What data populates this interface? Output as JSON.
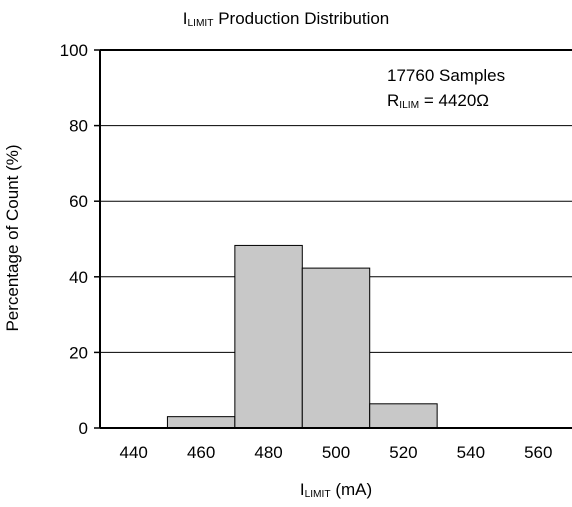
{
  "chart_data": {
    "type": "bar",
    "title": {
      "main": "I",
      "sub": "LIMIT",
      "rest": " Production Distribution"
    },
    "xlabel": {
      "main": "I",
      "sub": "LIMIT",
      "rest": " (mA)"
    },
    "ylabel": "Percentage of Count (%)",
    "bins": [
      {
        "start": 450,
        "end": 470,
        "value": 3
      },
      {
        "start": 470,
        "end": 490,
        "value": 48.3
      },
      {
        "start": 490,
        "end": 510,
        "value": 42.3
      },
      {
        "start": 510,
        "end": 530,
        "value": 6.4
      }
    ],
    "xlim": [
      430,
      570
    ],
    "ylim": [
      0,
      100
    ],
    "xticks": [
      440,
      460,
      480,
      500,
      520,
      540,
      560
    ],
    "yticks": [
      0,
      20,
      40,
      60,
      80,
      100
    ],
    "grid": "horizontal",
    "bar_color": "#c8c8c8",
    "annotation": {
      "line1": "17760 Samples",
      "line2": {
        "main": "R",
        "sub": "ILIM",
        "rest": " = 4420Ω"
      }
    }
  }
}
